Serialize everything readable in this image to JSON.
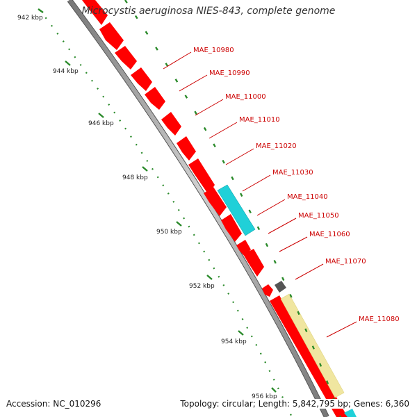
{
  "title": "Microcystis aeruginosa NIES-843, complete genome",
  "footer": {
    "accession": "Accession: NC_010296",
    "summary": "Topology: circular; Length: 5,842,795 bp; Genes: 6,360"
  },
  "scale": {
    "tick_labels": [
      "942 kbp",
      "944 kbp",
      "946 kbp",
      "948 kbp",
      "950 kbp",
      "952 kbp",
      "954 kbp",
      "956 kbp"
    ]
  },
  "genes": {
    "labels": [
      "MAE_10980",
      "MAE_10990",
      "MAE_11000",
      "MAE_11010",
      "MAE_11020",
      "MAE_11030",
      "MAE_11040",
      "MAE_11050",
      "MAE_11060",
      "MAE_11070",
      "MAE_11080"
    ]
  },
  "colors": {
    "cds": "#ff0000",
    "rna": "#20d0d8",
    "misc_feature": "#f0e6a0",
    "small_feature": "#555555",
    "backbone": "#999999",
    "tick": "#2a8a2a",
    "label": "#cc0000"
  }
}
